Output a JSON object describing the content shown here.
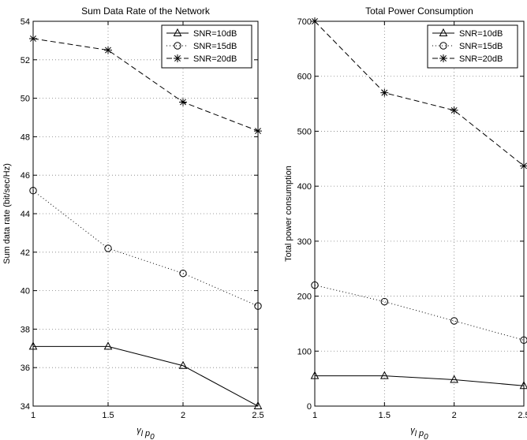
{
  "colors": {
    "line": "#000000",
    "background": "#ffffff",
    "grid": "#7f7f7f"
  },
  "chart_data": [
    {
      "type": "line",
      "title": "Sum Data Rate of the Network",
      "xlabel": "γ_l p_0",
      "ylabel": "Sum data rate (bit/sec/Hz)",
      "x": [
        1,
        1.5,
        2,
        2.5
      ],
      "xticks": [
        "1",
        "1.5",
        "2",
        "2.5"
      ],
      "xlim": [
        1,
        2.5
      ],
      "ylim": [
        34,
        54
      ],
      "yticks": [
        "34",
        "36",
        "38",
        "40",
        "42",
        "44",
        "46",
        "48",
        "50",
        "52",
        "54"
      ],
      "grid": true,
      "legend_position": "top-right",
      "series": [
        {
          "name": "SNR=10dB",
          "marker": "triangle",
          "linestyle": "solid",
          "values": [
            37.1,
            37.1,
            36.1,
            34.0
          ]
        },
        {
          "name": "SNR=15dB",
          "marker": "circle",
          "linestyle": "dotted",
          "values": [
            45.2,
            42.2,
            40.9,
            39.2
          ]
        },
        {
          "name": "SNR=20dB",
          "marker": "star",
          "linestyle": "dashed",
          "values": [
            53.1,
            52.5,
            49.8,
            48.3
          ]
        }
      ]
    },
    {
      "type": "line",
      "title": "Total Power Consumption",
      "xlabel": "γ_l p_0",
      "ylabel": "Total power consumption",
      "x": [
        1,
        1.5,
        2,
        2.5
      ],
      "xticks": [
        "1",
        "1.5",
        "2",
        "2.5"
      ],
      "xlim": [
        1,
        2.5
      ],
      "ylim": [
        0,
        700
      ],
      "yticks": [
        "0",
        "100",
        "200",
        "300",
        "400",
        "500",
        "600",
        "700"
      ],
      "grid": true,
      "legend_position": "top-right",
      "series": [
        {
          "name": "SNR=10dB",
          "marker": "triangle",
          "linestyle": "solid",
          "values": [
            55,
            55,
            48,
            37
          ]
        },
        {
          "name": "SNR=15dB",
          "marker": "circle",
          "linestyle": "dotted",
          "values": [
            220,
            190,
            155,
            120
          ]
        },
        {
          "name": "SNR=20dB",
          "marker": "star",
          "linestyle": "dashed",
          "values": [
            700,
            570,
            538,
            437
          ]
        }
      ]
    }
  ]
}
